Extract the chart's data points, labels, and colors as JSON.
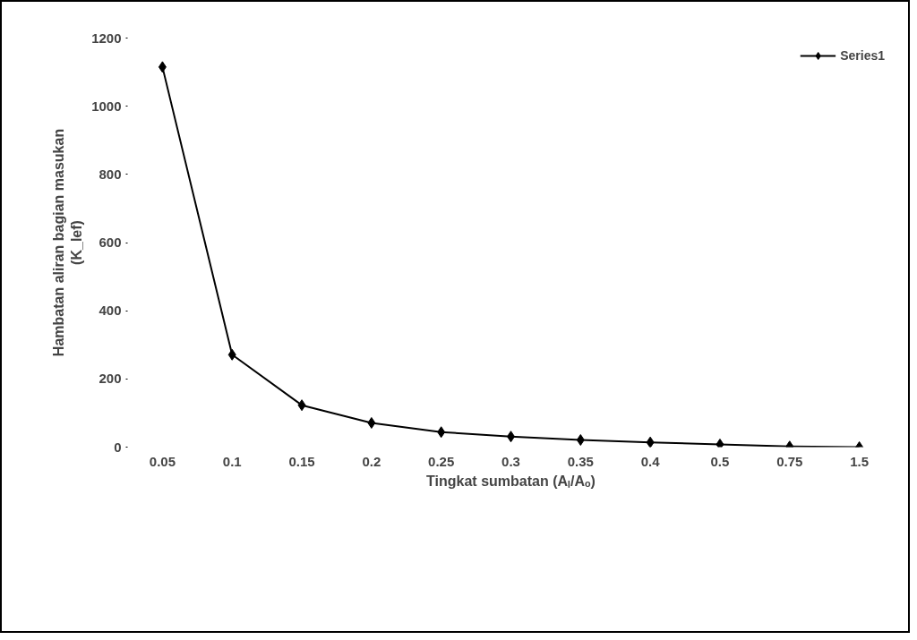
{
  "chart_data": {
    "type": "line",
    "categories": [
      "0.05",
      "0.1",
      "0.15",
      "0.2",
      "0.25",
      "0.3",
      "0.35",
      "0.4",
      "0.5",
      "0.75",
      "1.5"
    ],
    "series": [
      {
        "name": "Series1",
        "color": "#000000",
        "values": [
          1115,
          271,
          123,
          71,
          44,
          31,
          21,
          14,
          8,
          2,
          0
        ]
      }
    ],
    "xlabel": "Tingkat sumbatan (Aₗ/Aₒ)",
    "ylabel": "Hambatan aliran bagian masukan\n(K_lef)",
    "ylim": [
      0,
      1200
    ],
    "yticks": [
      0,
      200,
      400,
      600,
      800,
      1000,
      1200
    ],
    "grid": false,
    "legend": "top right",
    "marker": "diamond",
    "line_style": "solid"
  }
}
